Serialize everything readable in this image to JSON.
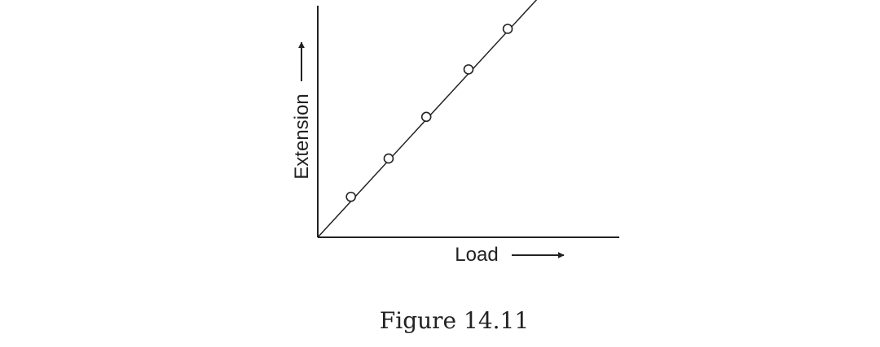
{
  "caption": "Figure 14.11",
  "chart_data": {
    "type": "scatter",
    "xlabel": "Load",
    "ylabel": "Extension",
    "x_ticks": [],
    "y_ticks": [],
    "xlim": [
      0,
      10
    ],
    "ylim": [
      0,
      10
    ],
    "fit_line": {
      "from": [
        0,
        0
      ],
      "to": [
        7.5,
        10.6
      ]
    },
    "points": [
      {
        "x": 1.1,
        "y": 1.75
      },
      {
        "x": 2.35,
        "y": 3.4
      },
      {
        "x": 3.6,
        "y": 5.2
      },
      {
        "x": 5.0,
        "y": 7.25
      },
      {
        "x": 6.3,
        "y": 9.0
      }
    ],
    "colors": {
      "ink": "#222222",
      "marker_fill": "#ffffff"
    }
  }
}
